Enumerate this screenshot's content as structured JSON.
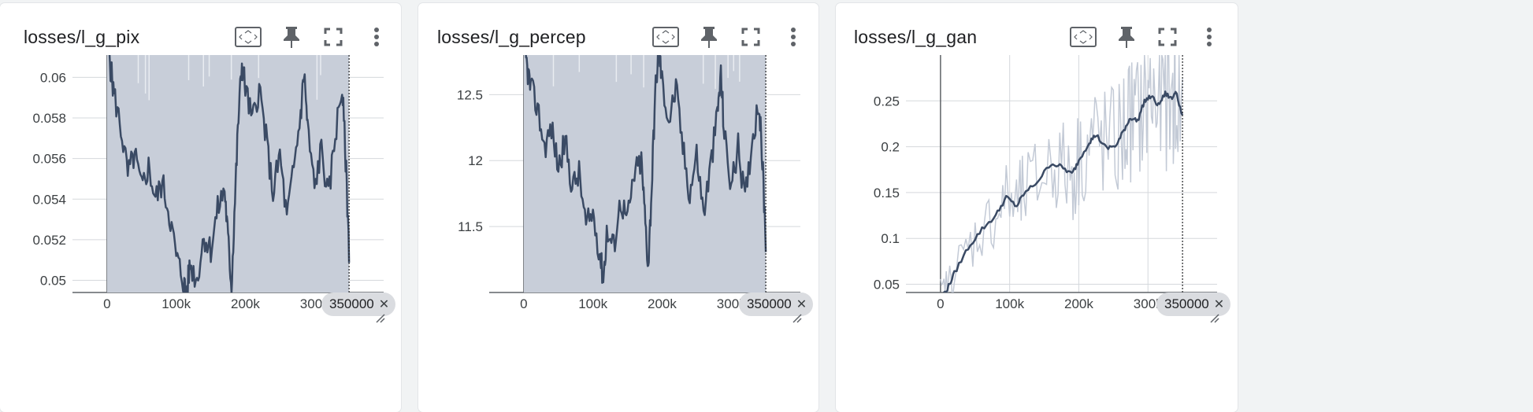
{
  "colors": {
    "line": "#3a4a64",
    "fill": "#c8ced9",
    "raw": "#c3cad6",
    "grid": "#d5d8dc",
    "axis": "#5f6368"
  },
  "toolbar_icons": [
    "fit-domain-icon",
    "pin-icon",
    "fullscreen-icon",
    "more-vert-icon"
  ],
  "cards": [
    {
      "title": "losses/l_g_pix",
      "hover_step_label": "350000",
      "chart_data": {
        "type": "line",
        "title": "losses/l_g_pix",
        "x_ticks": [
          "0",
          "100k",
          "200k",
          "300k"
        ],
        "y_ticks": [
          "0.05",
          "0.052",
          "0.054",
          "0.056",
          "0.058",
          "0.06"
        ],
        "xlim": [
          -50000,
          400000
        ],
        "ylim": [
          0.0494,
          0.0611
        ],
        "smoothed": [
          [
            0,
            0.063
          ],
          [
            5000,
            0.0605
          ],
          [
            10000,
            0.0592
          ],
          [
            20000,
            0.0575
          ],
          [
            30000,
            0.0552
          ],
          [
            40000,
            0.0562
          ],
          [
            50000,
            0.0545
          ],
          [
            60000,
            0.0556
          ],
          [
            70000,
            0.054
          ],
          [
            80000,
            0.0548
          ],
          [
            90000,
            0.0533
          ],
          [
            100000,
            0.0512
          ],
          [
            110000,
            0.05
          ],
          [
            115000,
            0.0493
          ],
          [
            120000,
            0.0508
          ],
          [
            130000,
            0.05
          ],
          [
            140000,
            0.0522
          ],
          [
            150000,
            0.0515
          ],
          [
            160000,
            0.0535
          ],
          [
            170000,
            0.0545
          ],
          [
            175000,
            0.052
          ],
          [
            180000,
            0.0497
          ],
          [
            185000,
            0.054
          ],
          [
            190000,
            0.058
          ],
          [
            195000,
            0.0607
          ],
          [
            200000,
            0.0595
          ],
          [
            210000,
            0.0578
          ],
          [
            220000,
            0.0595
          ],
          [
            230000,
            0.057
          ],
          [
            240000,
            0.0543
          ],
          [
            250000,
            0.0562
          ],
          [
            260000,
            0.053
          ],
          [
            270000,
            0.0555
          ],
          [
            280000,
            0.0582
          ],
          [
            285000,
            0.0603
          ],
          [
            290000,
            0.0575
          ],
          [
            300000,
            0.0545
          ],
          [
            310000,
            0.0565
          ],
          [
            320000,
            0.054
          ],
          [
            330000,
            0.0572
          ],
          [
            340000,
            0.0595
          ],
          [
            345000,
            0.056
          ],
          [
            350000,
            0.0515
          ]
        ]
      }
    },
    {
      "title": "losses/l_g_percep",
      "hover_step_label": "350000",
      "chart_data": {
        "type": "line",
        "title": "losses/l_g_percep",
        "x_ticks": [
          "0",
          "100k",
          "200k",
          "300k"
        ],
        "y_ticks": [
          "11.5",
          "12",
          "12.5"
        ],
        "xlim": [
          -50000,
          400000
        ],
        "ylim": [
          11.0,
          12.8
        ],
        "smoothed": [
          [
            0,
            12.9
          ],
          [
            5000,
            12.7
          ],
          [
            10000,
            12.55
          ],
          [
            20000,
            12.4
          ],
          [
            30000,
            12.1
          ],
          [
            40000,
            12.25
          ],
          [
            50000,
            11.95
          ],
          [
            60000,
            12.15
          ],
          [
            70000,
            11.8
          ],
          [
            80000,
            11.9
          ],
          [
            90000,
            11.5
          ],
          [
            100000,
            11.6
          ],
          [
            110000,
            11.3
          ],
          [
            115000,
            11.1
          ],
          [
            120000,
            11.45
          ],
          [
            130000,
            11.35
          ],
          [
            140000,
            11.7
          ],
          [
            150000,
            11.55
          ],
          [
            160000,
            11.9
          ],
          [
            170000,
            12.0
          ],
          [
            175000,
            11.6
          ],
          [
            180000,
            11.2
          ],
          [
            185000,
            11.8
          ],
          [
            190000,
            12.5
          ],
          [
            195000,
            12.85
          ],
          [
            200000,
            12.6
          ],
          [
            210000,
            12.3
          ],
          [
            220000,
            12.55
          ],
          [
            230000,
            12.1
          ],
          [
            240000,
            11.75
          ],
          [
            250000,
            12.05
          ],
          [
            260000,
            11.6
          ],
          [
            270000,
            11.95
          ],
          [
            280000,
            12.35
          ],
          [
            285000,
            12.65
          ],
          [
            290000,
            12.2
          ],
          [
            300000,
            11.8
          ],
          [
            310000,
            12.1
          ],
          [
            320000,
            11.7
          ],
          [
            330000,
            12.15
          ],
          [
            340000,
            12.45
          ],
          [
            345000,
            12.0
          ],
          [
            350000,
            11.4
          ]
        ]
      }
    },
    {
      "title": "losses/l_g_gan",
      "hover_step_label": "350000",
      "chart_data": {
        "type": "line",
        "title": "losses/l_g_gan",
        "x_ticks": [
          "0",
          "100k",
          "200k",
          "300k"
        ],
        "y_ticks": [
          "0.05",
          "0.1",
          "0.15",
          "0.2",
          "0.25"
        ],
        "xlim": [
          -50000,
          400000
        ],
        "ylim": [
          0.041,
          0.3
        ],
        "smoothed": [
          [
            0,
            0.035
          ],
          [
            10000,
            0.045
          ],
          [
            20000,
            0.062
          ],
          [
            40000,
            0.09
          ],
          [
            60000,
            0.11
          ],
          [
            80000,
            0.125
          ],
          [
            95000,
            0.145
          ],
          [
            110000,
            0.135
          ],
          [
            120000,
            0.148
          ],
          [
            140000,
            0.162
          ],
          [
            160000,
            0.182
          ],
          [
            175000,
            0.178
          ],
          [
            190000,
            0.17
          ],
          [
            200000,
            0.185
          ],
          [
            215000,
            0.205
          ],
          [
            225000,
            0.213
          ],
          [
            240000,
            0.198
          ],
          [
            255000,
            0.202
          ],
          [
            265000,
            0.218
          ],
          [
            275000,
            0.232
          ],
          [
            285000,
            0.228
          ],
          [
            295000,
            0.25
          ],
          [
            305000,
            0.255
          ],
          [
            315000,
            0.245
          ],
          [
            325000,
            0.258
          ],
          [
            335000,
            0.252
          ],
          [
            340000,
            0.262
          ],
          [
            350000,
            0.232
          ]
        ]
      }
    }
  ]
}
